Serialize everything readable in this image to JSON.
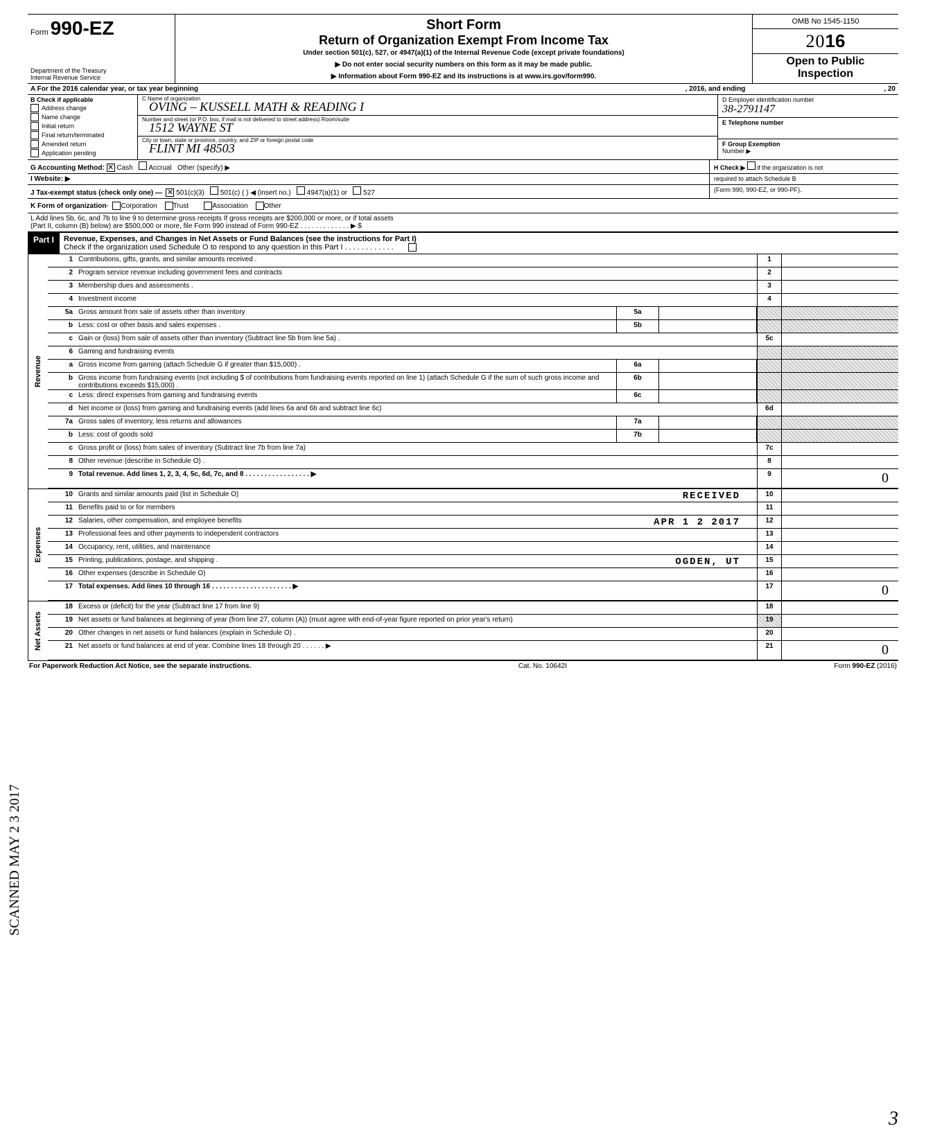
{
  "header": {
    "form_prefix": "Form",
    "form_number": "990-EZ",
    "title1": "Short Form",
    "title2": "Return of Organization Exempt From Income Tax",
    "subtitle": "Under section 501(c), 527, or 4947(a)(1) of the Internal Revenue Code (except private foundations)",
    "note1": "▶ Do not enter social security numbers on this form as it may be made public.",
    "note2": "▶ Information about Form 990-EZ and its instructions is at www.irs.gov/form990.",
    "dept1": "Department of the Treasury",
    "dept2": "Internal Revenue Service",
    "omb": "OMB No 1545-1150",
    "year_prefix": "2",
    "year_outline": "0",
    "year_bold": "16",
    "open1": "Open to Public",
    "open2": "Inspection"
  },
  "rowA": {
    "left": "A  For the 2016 calendar year, or tax year beginning",
    "mid": ", 2016, and ending",
    "right": ", 20"
  },
  "colB": {
    "header": "B  Check if applicable",
    "items": [
      "Address change",
      "Name change",
      "Initial return",
      "Final return/terminated",
      "Amended return",
      "Application pending"
    ]
  },
  "colC": {
    "c_name_label": "C  Name of organization",
    "c_name_value": "OVING – KUSSELL MATH & READING I",
    "c_addr_label": "Number and street (or P.O. box, if mail is not delivered to street address)                          Room/suite",
    "c_addr_value": "1512 WAYNE ST",
    "c_city_label": "City or town, state or province, country, and ZIP or foreign postal code",
    "c_city_value": "FLINT                    MI  48503"
  },
  "colDEF": {
    "d_label": "D Employer identification number",
    "d_value": "38-2791147",
    "e_label": "E Telephone number",
    "f_label": "F Group Exemption",
    "f_label2": "   Number ▶"
  },
  "lineG": {
    "label": "G  Accounting Method:",
    "cash": "Cash",
    "accrual": "Accrual",
    "other": "Other (specify) ▶"
  },
  "lineH": {
    "text1": "H Check ▶",
    "text2": "if the organization is not",
    "text3": "required to attach Schedule B",
    "text4": "(Form 990, 990-EZ, or 990-PF)."
  },
  "lineI": {
    "label": "I   Website: ▶"
  },
  "lineJ": {
    "label": "J  Tax-exempt status (check only one) —",
    "opt1": "501(c)(3)",
    "opt2": "501(c) (          ) ◀ (insert no.)",
    "opt3": "4947(a)(1) or",
    "opt4": "527"
  },
  "lineK": {
    "label": "K  Form of organization·",
    "opts": [
      "Corporation",
      "Trust",
      "Association",
      "Other"
    ]
  },
  "lineL": {
    "l1": "L  Add lines 5b, 6c, and 7b to line 9 to determine gross receipts  If gross receipts are $200,000 or more, or if total assets",
    "l2": "(Part II, column (B) below) are $500,000 or more, file Form 990 instead of Form 990-EZ .    .    .    .    .    .    .    .    .    .    .    .    .    ▶    $"
  },
  "part1": {
    "label": "Part I",
    "title": "Revenue, Expenses, and Changes in Net Assets or Fund Balances (see the instructions for Part I)",
    "check_line": "Check if the organization used Schedule O to respond to any question in this Part I .    .    .    .    .    .    .    .    .    .    .    ."
  },
  "sections": {
    "revenue": "Revenue",
    "expenses": "Expenses",
    "netassets": "Net Assets"
  },
  "rows": [
    {
      "n": "1",
      "d": "Contributions, gifts, grants, and similar amounts received .",
      "r": "1"
    },
    {
      "n": "2",
      "d": "Program service revenue including government fees and contracts",
      "r": "2"
    },
    {
      "n": "3",
      "d": "Membership dues and assessments .",
      "r": "3"
    },
    {
      "n": "4",
      "d": "Investment income",
      "r": "4"
    },
    {
      "n": "5a",
      "d": "Gross amount from sale of assets other than inventory",
      "m": "5a"
    },
    {
      "n": "b",
      "d": "Less: cost or other basis and sales expenses .",
      "m": "5b"
    },
    {
      "n": "c",
      "d": "Gain or (loss) from sale of assets other than inventory (Subtract line 5b from line 5a) .",
      "r": "5c"
    },
    {
      "n": "6",
      "d": "Gaming and fundraising events"
    },
    {
      "n": "a",
      "d": "Gross income from gaming (attach Schedule G if greater than $15,000) .",
      "m": "6a"
    },
    {
      "n": "b",
      "d": "Gross income from fundraising events (not including  $                          of contributions from fundraising events reported on line 1) (attach Schedule G if the sum of such gross income and contributions exceeds $15,000) .",
      "m": "6b"
    },
    {
      "n": "c",
      "d": "Less: direct expenses from gaming and fundraising events",
      "m": "6c"
    },
    {
      "n": "d",
      "d": "Net income or (loss) from gaming and fundraising events (add lines 6a and 6b and subtract line 6c)",
      "r": "6d"
    },
    {
      "n": "7a",
      "d": "Gross sales of inventory, less returns and allowances",
      "m": "7a"
    },
    {
      "n": "b",
      "d": "Less: cost of goods sold",
      "m": "7b"
    },
    {
      "n": "c",
      "d": "Gross profit or (loss) from sales of inventory (Subtract line 7b from line 7a)",
      "r": "7c"
    },
    {
      "n": "8",
      "d": "Other revenue (describe in Schedule O) .",
      "r": "8"
    },
    {
      "n": "9",
      "d": "Total revenue. Add lines 1, 2, 3, 4, 5c, 6d, 7c, and 8    .    .    .    .    .    .    .    .    .    .    .    .    .    .    .    .    .    ▶",
      "r": "9",
      "bold": true,
      "val": "0"
    }
  ],
  "exp_rows": [
    {
      "n": "10",
      "d": "Grants and similar amounts paid (list in Schedule O)",
      "r": "10",
      "stamp": "RECEIVED"
    },
    {
      "n": "11",
      "d": "Benefits paid to or for members",
      "r": "11"
    },
    {
      "n": "12",
      "d": "Salaries, other compensation, and employee benefits",
      "r": "12",
      "stamp": "APR 1 2 2017"
    },
    {
      "n": "13",
      "d": "Professional fees and other payments to independent contractors",
      "r": "13"
    },
    {
      "n": "14",
      "d": "Occupancy, rent, utilities, and maintenance",
      "r": "14"
    },
    {
      "n": "15",
      "d": "Printing, publications, postage, and shipping .",
      "r": "15",
      "stamp": "OGDEN, UT"
    },
    {
      "n": "16",
      "d": "Other expenses (describe in Schedule O)",
      "r": "16"
    },
    {
      "n": "17",
      "d": "Total expenses. Add lines 10 through 16   .    .    .    .    .    .    .    .    .    .    .    .    .    .    .    .    .    .    .    .    .    ▶",
      "r": "17",
      "bold": true,
      "val": "0"
    }
  ],
  "na_rows": [
    {
      "n": "18",
      "d": "Excess or (deficit) for the year (Subtract line 17 from line 9)",
      "r": "18"
    },
    {
      "n": "19",
      "d": "Net assets or fund balances at beginning of year (from line 27, column (A)) (must agree with end-of-year figure reported on prior year's return)",
      "r": "19",
      "shade_r": true
    },
    {
      "n": "20",
      "d": "Other changes in net assets or fund balances (explain in Schedule O) .",
      "r": "20"
    },
    {
      "n": "21",
      "d": "Net assets or fund balances at end of year. Combine lines 18 through 20    .    .    .    .    .    .    ▶",
      "r": "21",
      "val": "0"
    }
  ],
  "footer": {
    "left": "For Paperwork Reduction Act Notice, see the separate instructions.",
    "mid": "Cat. No. 10642I",
    "right_pre": "Form ",
    "right_bold": "990-EZ",
    "right_post": "  (2016)"
  },
  "side_stamp": "SCANNED MAY 2 3 2017",
  "page_num": "3"
}
